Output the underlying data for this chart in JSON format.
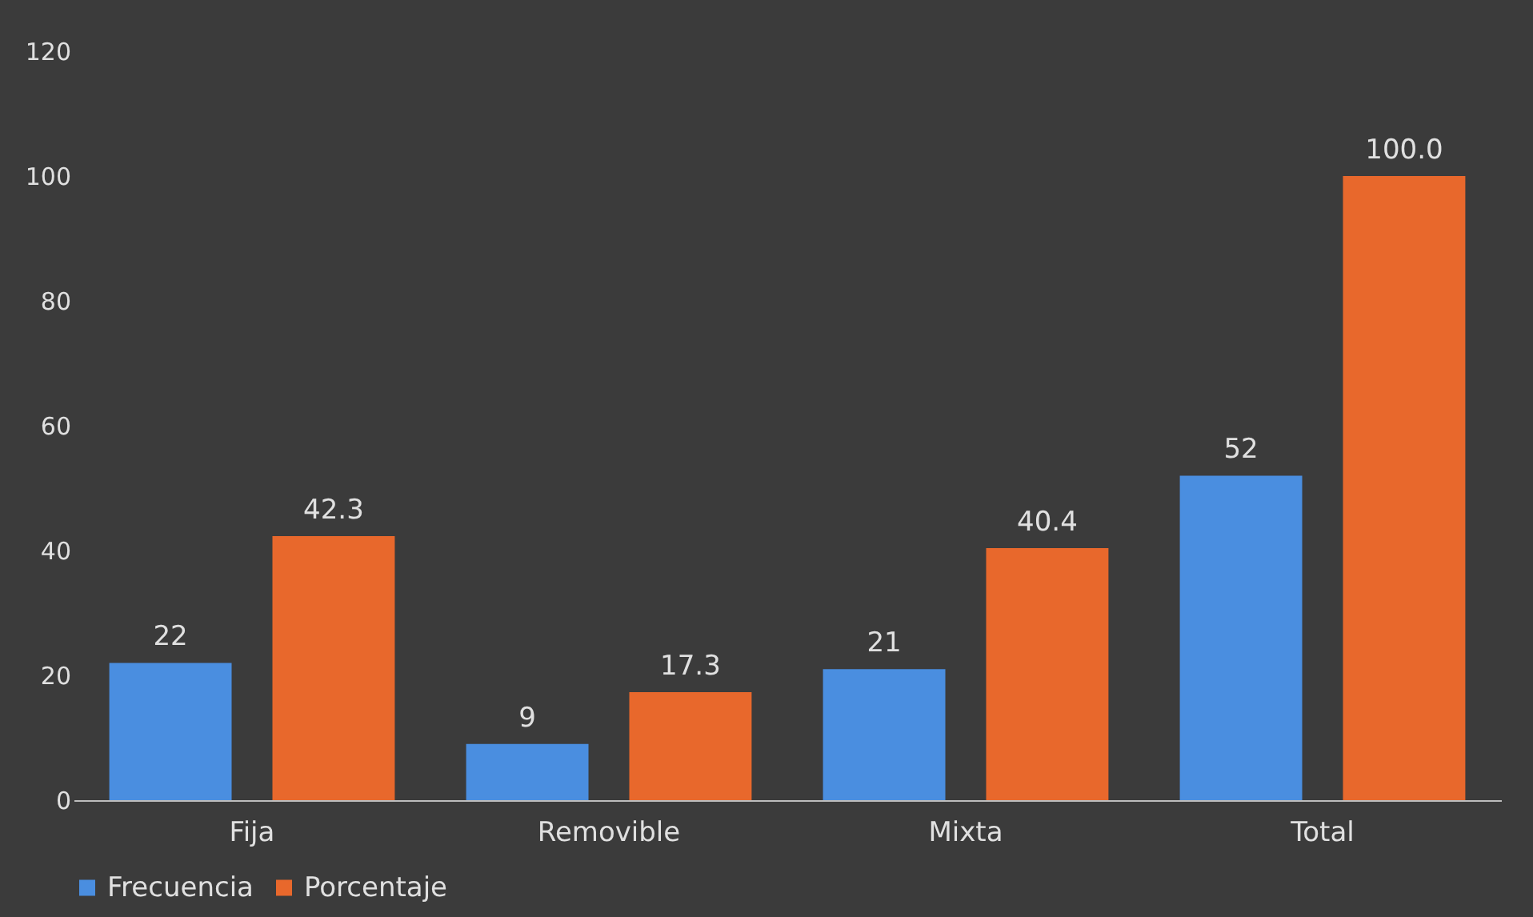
{
  "chart_data": {
    "type": "bar",
    "categories": [
      "Fija",
      "Removible",
      "Mixta",
      "Total"
    ],
    "series": [
      {
        "name": "Frecuencia",
        "color": "#4a8ee0",
        "values": [
          22,
          9,
          21,
          52
        ],
        "value_labels": [
          "22",
          "9",
          "21",
          "52"
        ]
      },
      {
        "name": "Porcentaje",
        "color": "#e8682c",
        "values": [
          42.3,
          17.3,
          40.4,
          100
        ],
        "value_labels": [
          "42.3",
          "17.3",
          "40.4",
          "100.0"
        ]
      }
    ],
    "ylim": [
      0,
      120
    ],
    "yticks": [
      0,
      20,
      40,
      60,
      80,
      100,
      120
    ],
    "grid": false,
    "legend": "bottom"
  }
}
